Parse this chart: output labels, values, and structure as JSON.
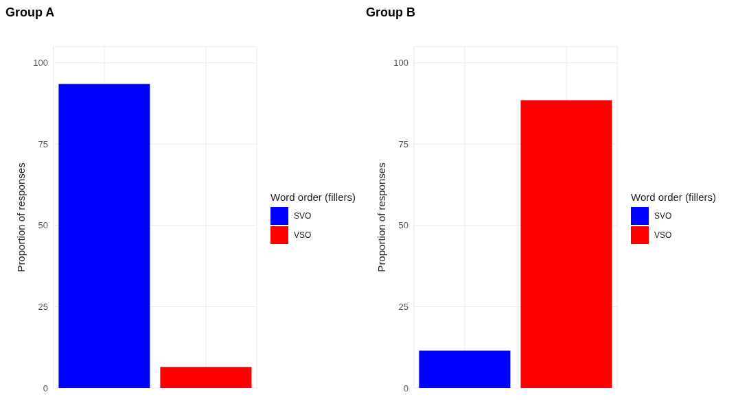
{
  "chart_data": [
    {
      "type": "bar",
      "title": "Group A",
      "ylabel": "Proportion of responses",
      "legend_title": "Word order (fillers)",
      "categories": [
        null,
        null
      ],
      "stacked": true,
      "ylim": [
        0,
        105
      ],
      "yticks": [
        0,
        25,
        50,
        75,
        100
      ],
      "grid": true,
      "legend": "right",
      "series": [
        {
          "name": "SVO",
          "color": "#0000ff",
          "values": [
            93.5,
            null
          ]
        },
        {
          "name": "VSO",
          "color": "#ff0000",
          "values": [
            null,
            6.5
          ]
        }
      ]
    },
    {
      "type": "bar",
      "title": "Group B",
      "ylabel": "Proportion of responses",
      "legend_title": "Word order (fillers)",
      "categories": [
        null,
        null
      ],
      "stacked": true,
      "ylim": [
        0,
        105
      ],
      "yticks": [
        0,
        25,
        50,
        75,
        100
      ],
      "grid": true,
      "legend": "right",
      "series": [
        {
          "name": "SVO",
          "color": "#0000ff",
          "values": [
            11.5,
            null
          ]
        },
        {
          "name": "VSO",
          "color": "#ff0000",
          "values": [
            null,
            88.5
          ]
        }
      ]
    }
  ]
}
